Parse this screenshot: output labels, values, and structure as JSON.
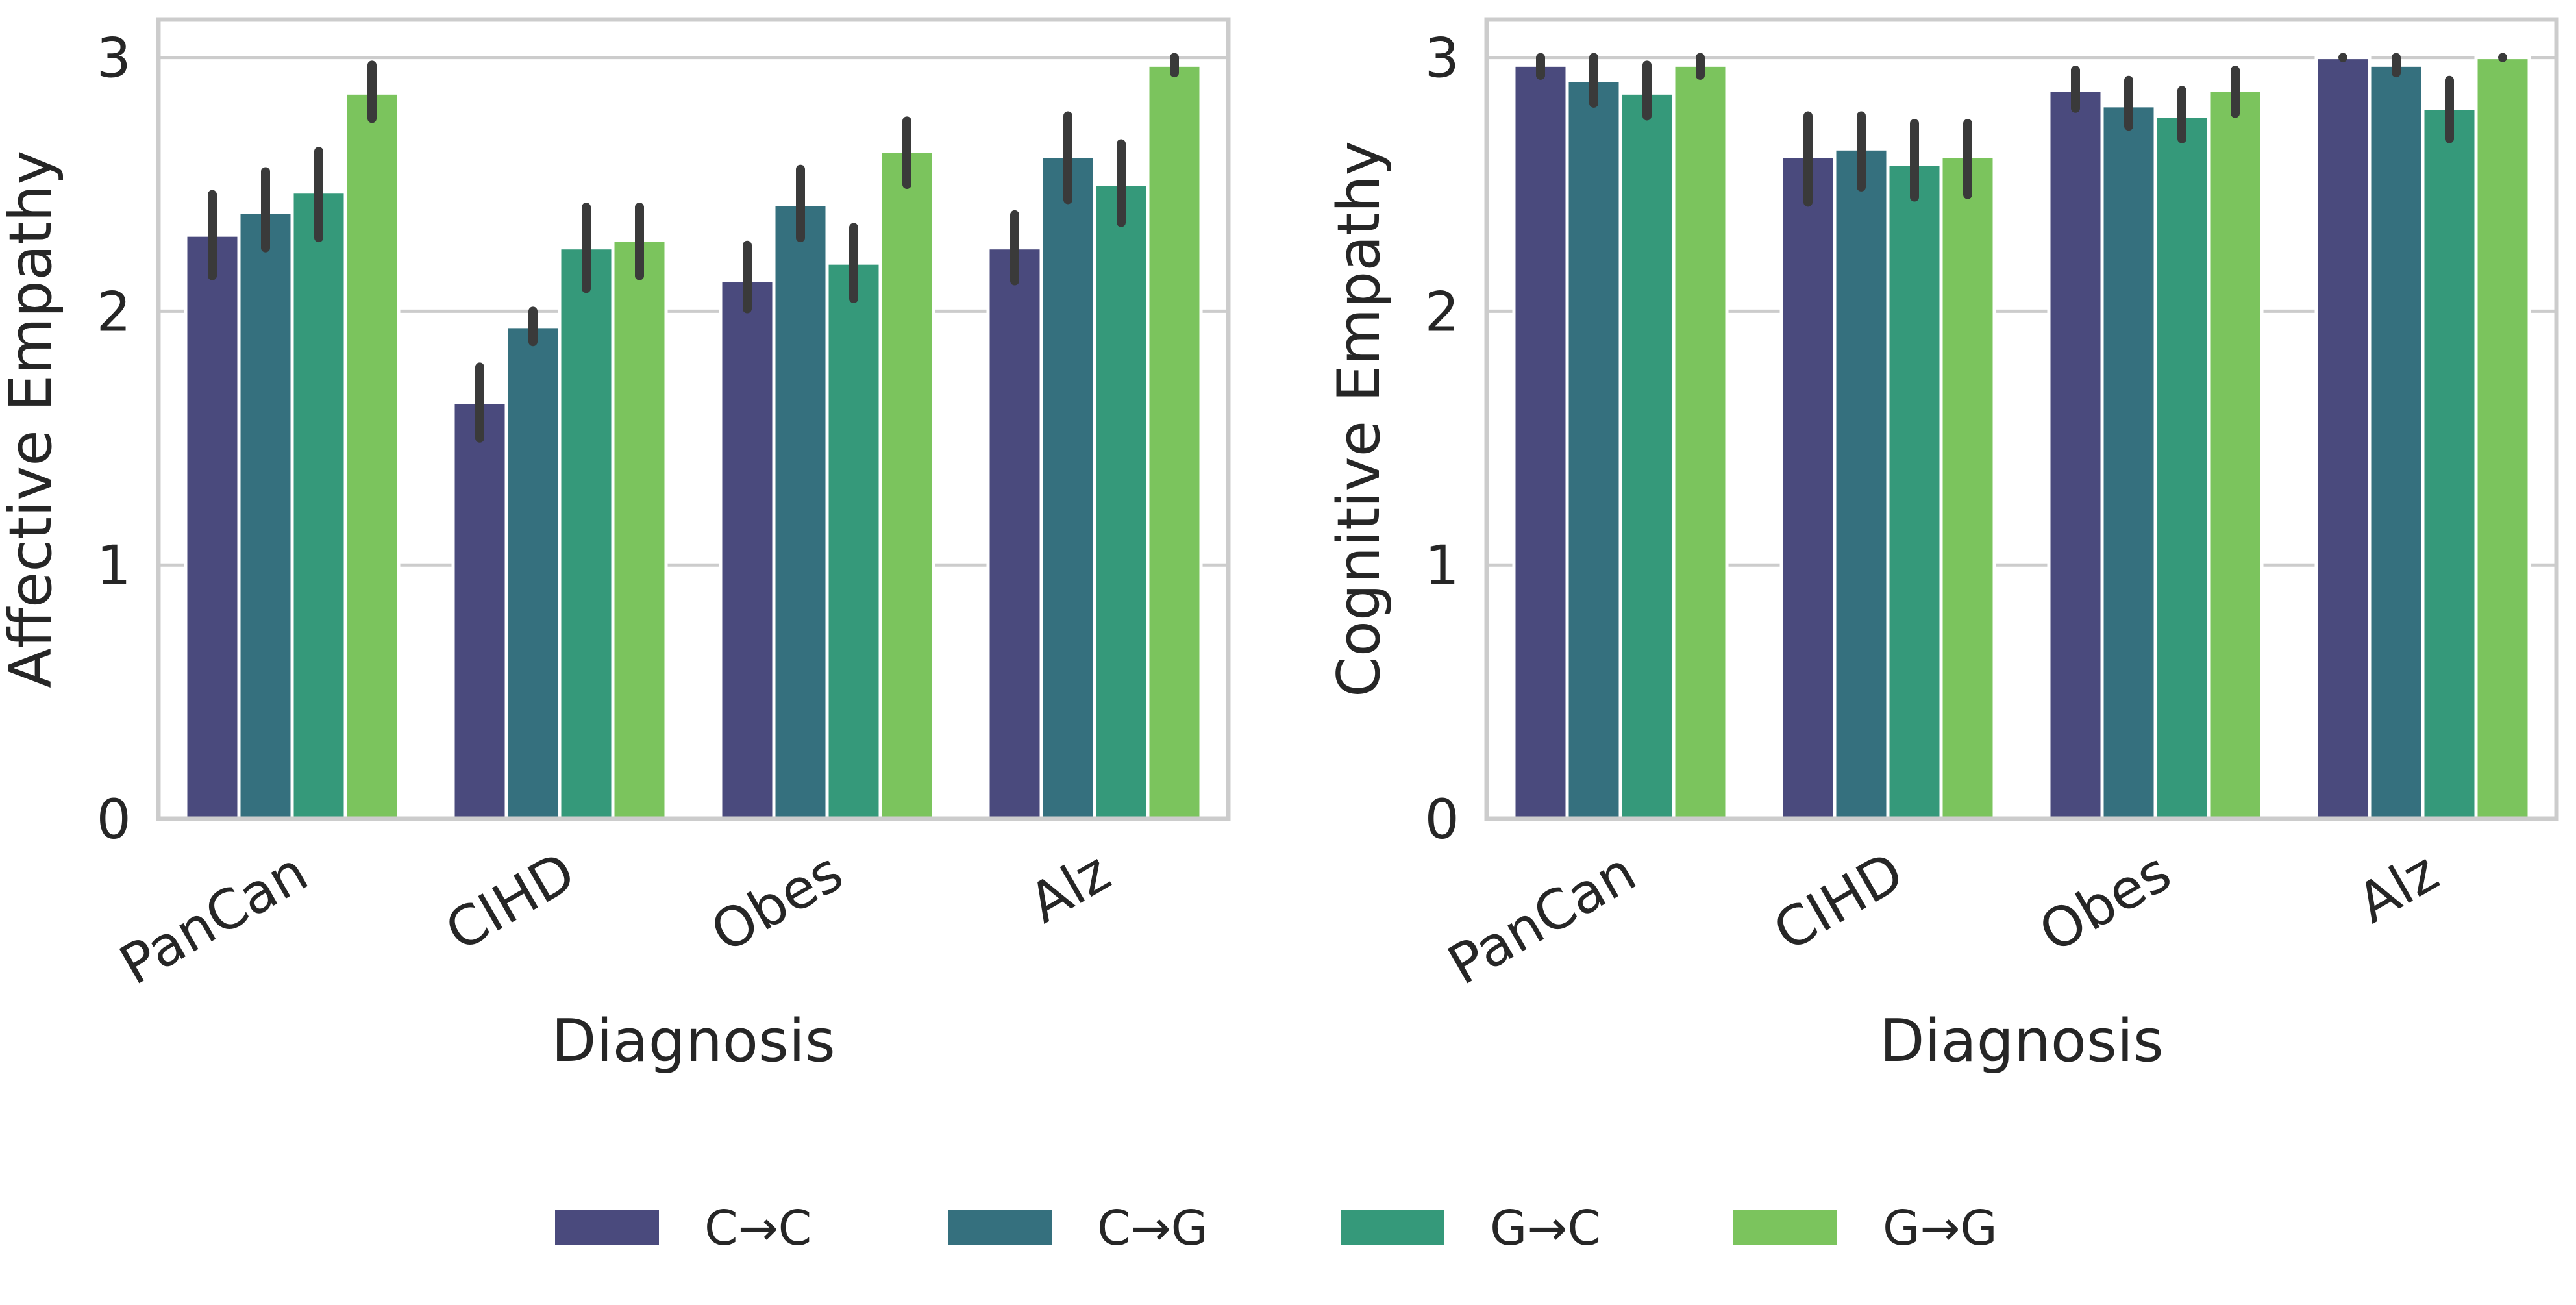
{
  "chart_data": [
    {
      "type": "bar",
      "xlabel": "Diagnosis",
      "ylabel": "Affective Empathy",
      "ylim": [
        0,
        3.15
      ],
      "yticks": [
        "0",
        "1",
        "2",
        "3"
      ],
      "grid": "horizontal",
      "categories": [
        "PanCan",
        "CIHD",
        "Obes",
        "Alz"
      ],
      "series": [
        {
          "name": "C→C",
          "values": [
            2.3,
            1.64,
            2.12,
            2.25
          ],
          "ci_low": [
            2.14,
            1.5,
            2.01,
            2.12
          ],
          "ci_high": [
            2.46,
            1.78,
            2.26,
            2.38
          ]
        },
        {
          "name": "C→G",
          "values": [
            2.39,
            1.94,
            2.42,
            2.61
          ],
          "ci_low": [
            2.25,
            1.88,
            2.29,
            2.44
          ],
          "ci_high": [
            2.55,
            2.0,
            2.56,
            2.77
          ]
        },
        {
          "name": "G→C",
          "values": [
            2.47,
            2.25,
            2.19,
            2.5
          ],
          "ci_low": [
            2.29,
            2.09,
            2.05,
            2.35
          ],
          "ci_high": [
            2.63,
            2.41,
            2.33,
            2.66
          ]
        },
        {
          "name": "G→G",
          "values": [
            2.86,
            2.28,
            2.63,
            2.97
          ],
          "ci_low": [
            2.76,
            2.14,
            2.5,
            2.94
          ],
          "ci_high": [
            2.97,
            2.41,
            2.75,
            3.0
          ]
        }
      ]
    },
    {
      "type": "bar",
      "xlabel": "Diagnosis",
      "ylabel": "Cognitive Empathy",
      "ylim": [
        0,
        3.15
      ],
      "yticks": [
        "0",
        "1",
        "2",
        "3"
      ],
      "grid": "horizontal",
      "categories": [
        "PanCan",
        "CIHD",
        "Obes",
        "Alz"
      ],
      "series": [
        {
          "name": "C→C",
          "values": [
            2.97,
            2.61,
            2.87,
            3.0
          ],
          "ci_low": [
            2.93,
            2.43,
            2.8,
            3.0
          ],
          "ci_high": [
            3.0,
            2.77,
            2.95,
            3.0
          ]
        },
        {
          "name": "C→G",
          "values": [
            2.91,
            2.64,
            2.81,
            2.97
          ],
          "ci_low": [
            2.82,
            2.49,
            2.73,
            2.94
          ],
          "ci_high": [
            3.0,
            2.77,
            2.91,
            3.0
          ]
        },
        {
          "name": "G→C",
          "values": [
            2.86,
            2.58,
            2.77,
            2.8
          ],
          "ci_low": [
            2.77,
            2.45,
            2.68,
            2.68
          ],
          "ci_high": [
            2.97,
            2.74,
            2.87,
            2.91
          ]
        },
        {
          "name": "G→G",
          "values": [
            2.97,
            2.61,
            2.87,
            3.0
          ],
          "ci_low": [
            2.93,
            2.46,
            2.78,
            3.0
          ],
          "ci_high": [
            3.0,
            2.74,
            2.95,
            3.0
          ]
        }
      ]
    }
  ],
  "legend": {
    "position": "bottom-center",
    "items": [
      {
        "label": "C→C",
        "color": "#4a4a7d"
      },
      {
        "label": "C→G",
        "color": "#35707e"
      },
      {
        "label": "G→C",
        "color": "#35997a"
      },
      {
        "label": "G→G",
        "color": "#7bc45d"
      }
    ]
  },
  "colors": {
    "grid": "#cccccc",
    "frame": "#cccccc",
    "error_bar": "#3a3a3a",
    "text": "#262626"
  }
}
